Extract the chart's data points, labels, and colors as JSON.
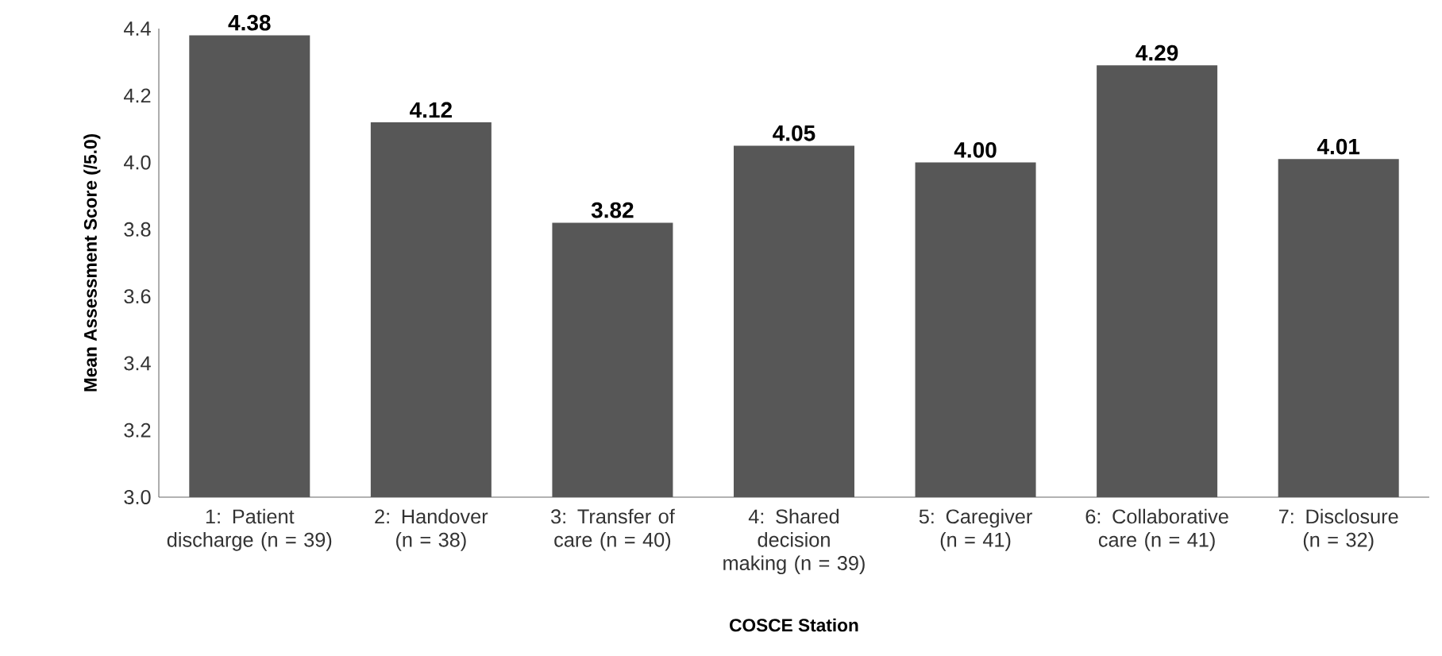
{
  "chart_data": {
    "type": "bar",
    "xlabel": "COSCE Station",
    "ylabel": "Mean Assessment Score (/5.0)",
    "categories": [
      "1: Patient discharge (n = 39)",
      "2: Handover (n = 38)",
      "3: Transfer of care (n = 40)",
      "4: Shared decision making (n = 39)",
      "5: Caregiver (n = 41)",
      "6: Collaborative care (n = 41)",
      "7: Disclosure (n = 32)"
    ],
    "values": [
      4.38,
      4.12,
      3.82,
      4.05,
      4.0,
      4.29,
      4.01
    ],
    "value_labels": [
      "4.38",
      "4.12",
      "3.82",
      "4.05",
      "4.00",
      "4.29",
      "4.01"
    ],
    "color": "#575757",
    "ylim": [
      3.0,
      4.4
    ],
    "yticks": [
      {
        "value": 3.0,
        "label": "3.0"
      },
      {
        "value": 3.2,
        "label": "3.2"
      },
      {
        "value": 3.4,
        "label": "3.4"
      },
      {
        "value": 3.6,
        "label": "3.6"
      },
      {
        "value": 3.8,
        "label": "3.8"
      },
      {
        "value": 4.0,
        "label": "4.0"
      },
      {
        "value": 4.2,
        "label": "4.2"
      },
      {
        "value": 4.4,
        "label": "4.4"
      }
    ],
    "grid": false
  }
}
